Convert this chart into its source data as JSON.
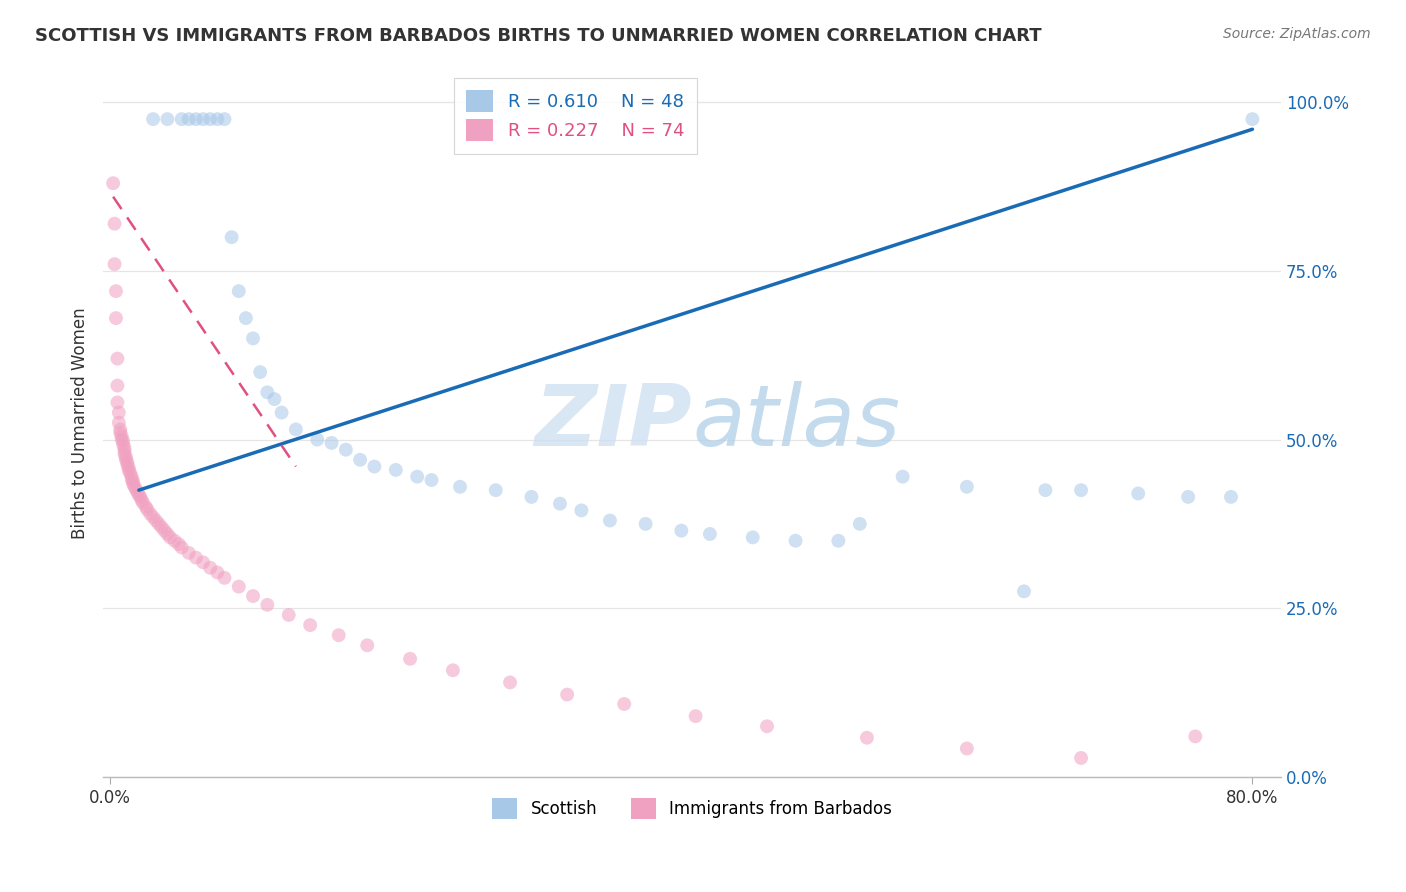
{
  "title": "SCOTTISH VS IMMIGRANTS FROM BARBADOS BIRTHS TO UNMARRIED WOMEN CORRELATION CHART",
  "source": "Source: ZipAtlas.com",
  "ylabel": "Births to Unmarried Women",
  "xlim": [
    -0.005,
    0.82
  ],
  "ylim": [
    0.0,
    1.05
  ],
  "yticks": [
    0.0,
    0.25,
    0.5,
    0.75,
    1.0
  ],
  "ytick_labels": [
    "0.0%",
    "25.0%",
    "50.0%",
    "75.0%",
    "100.0%"
  ],
  "xtick_positions": [
    0.0,
    0.8
  ],
  "xtick_labels": [
    "0.0%",
    "80.0%"
  ],
  "watermark_zip": "ZIP",
  "watermark_atlas": "atlas",
  "legend_R1": "R = 0.610",
  "legend_N1": "N = 48",
  "legend_R2": "R = 0.227",
  "legend_N2": "N = 74",
  "blue_color": "#a8c8e8",
  "blue_line_color": "#1a6bb5",
  "pink_color": "#f0a0c0",
  "pink_line_color": "#e05080",
  "scatter_alpha": 0.55,
  "scatter_size": 100,
  "blue_scatter_x": [
    0.03,
    0.04,
    0.05,
    0.055,
    0.06,
    0.065,
    0.07,
    0.075,
    0.08,
    0.085,
    0.09,
    0.095,
    0.1,
    0.105,
    0.11,
    0.115,
    0.12,
    0.13,
    0.145,
    0.155,
    0.165,
    0.175,
    0.185,
    0.2,
    0.215,
    0.225,
    0.245,
    0.27,
    0.295,
    0.315,
    0.33,
    0.35,
    0.375,
    0.4,
    0.42,
    0.45,
    0.48,
    0.51,
    0.525,
    0.555,
    0.6,
    0.64,
    0.655,
    0.68,
    0.72,
    0.755,
    0.785,
    0.8
  ],
  "blue_scatter_y": [
    0.975,
    0.975,
    0.975,
    0.975,
    0.975,
    0.975,
    0.975,
    0.975,
    0.975,
    0.8,
    0.72,
    0.68,
    0.65,
    0.6,
    0.57,
    0.56,
    0.54,
    0.515,
    0.5,
    0.495,
    0.485,
    0.47,
    0.46,
    0.455,
    0.445,
    0.44,
    0.43,
    0.425,
    0.415,
    0.405,
    0.395,
    0.38,
    0.375,
    0.365,
    0.36,
    0.355,
    0.35,
    0.35,
    0.375,
    0.445,
    0.43,
    0.275,
    0.425,
    0.425,
    0.42,
    0.415,
    0.415,
    0.975
  ],
  "pink_scatter_x": [
    0.002,
    0.003,
    0.003,
    0.004,
    0.004,
    0.005,
    0.005,
    0.005,
    0.006,
    0.006,
    0.007,
    0.007,
    0.008,
    0.008,
    0.009,
    0.009,
    0.01,
    0.01,
    0.01,
    0.011,
    0.011,
    0.012,
    0.012,
    0.013,
    0.013,
    0.014,
    0.015,
    0.015,
    0.016,
    0.016,
    0.017,
    0.018,
    0.019,
    0.02,
    0.021,
    0.022,
    0.023,
    0.025,
    0.026,
    0.028,
    0.03,
    0.032,
    0.034,
    0.036,
    0.038,
    0.04,
    0.042,
    0.045,
    0.048,
    0.05,
    0.055,
    0.06,
    0.065,
    0.07,
    0.075,
    0.08,
    0.09,
    0.1,
    0.11,
    0.125,
    0.14,
    0.16,
    0.18,
    0.21,
    0.24,
    0.28,
    0.32,
    0.36,
    0.41,
    0.46,
    0.53,
    0.6,
    0.68,
    0.76
  ],
  "pink_scatter_y": [
    0.88,
    0.82,
    0.76,
    0.72,
    0.68,
    0.62,
    0.58,
    0.555,
    0.54,
    0.525,
    0.515,
    0.51,
    0.505,
    0.5,
    0.498,
    0.492,
    0.488,
    0.483,
    0.478,
    0.474,
    0.47,
    0.466,
    0.462,
    0.458,
    0.454,
    0.45,
    0.445,
    0.441,
    0.438,
    0.434,
    0.43,
    0.426,
    0.422,
    0.418,
    0.415,
    0.41,
    0.406,
    0.4,
    0.396,
    0.39,
    0.385,
    0.38,
    0.375,
    0.37,
    0.365,
    0.36,
    0.355,
    0.35,
    0.345,
    0.34,
    0.332,
    0.325,
    0.318,
    0.31,
    0.303,
    0.295,
    0.282,
    0.268,
    0.255,
    0.24,
    0.225,
    0.21,
    0.195,
    0.175,
    0.158,
    0.14,
    0.122,
    0.108,
    0.09,
    0.075,
    0.058,
    0.042,
    0.028,
    0.06
  ],
  "blue_line_x": [
    0.02,
    0.8
  ],
  "blue_line_y": [
    0.425,
    0.96
  ],
  "pink_line_x": [
    0.002,
    0.13
  ],
  "pink_line_y": [
    0.86,
    0.46
  ],
  "background_color": "#ffffff",
  "grid_color": "#e5e5e5"
}
